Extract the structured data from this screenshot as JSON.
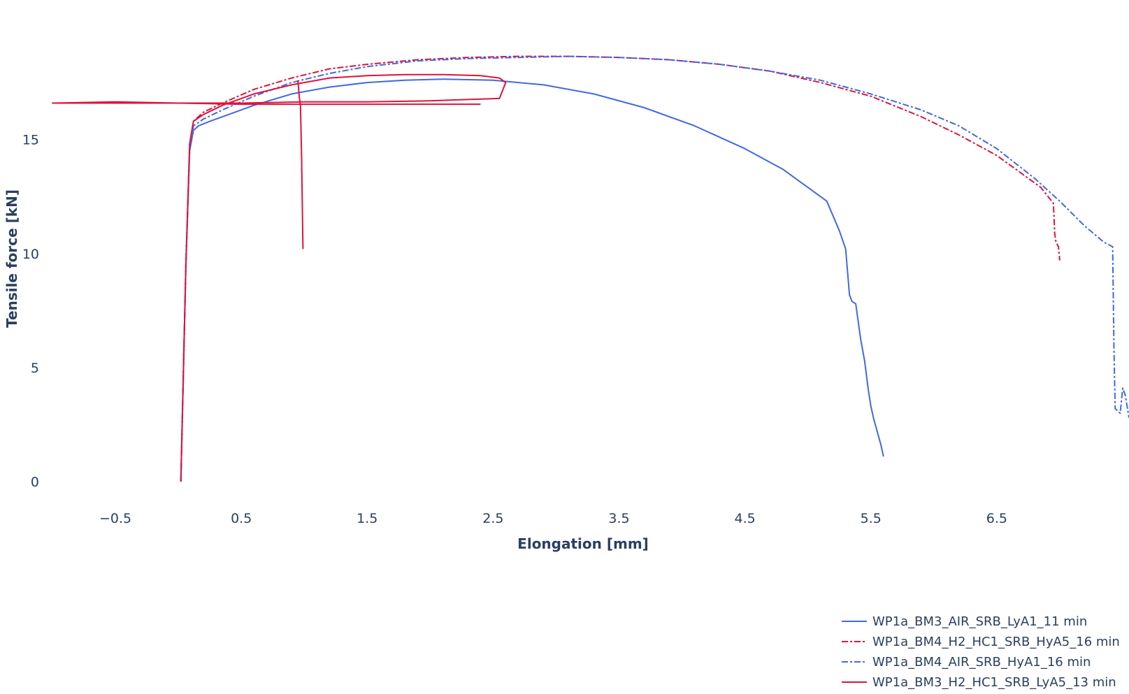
{
  "chart_data": {
    "type": "line",
    "xlabel": "Elongation [mm]",
    "ylabel": "Tensile force [kN]",
    "xlim": [
      -1.0,
      7.55
    ],
    "ylim": [
      -1.1,
      20.2
    ],
    "xticks": [
      -0.5,
      0.5,
      1.5,
      2.5,
      3.5,
      4.5,
      5.5,
      6.5
    ],
    "xtick_labels": [
      "−0.5",
      "0.5",
      "1.5",
      "2.5",
      "3.5",
      "4.5",
      "5.5",
      "6.5"
    ],
    "yticks": [
      0,
      5,
      10,
      15
    ],
    "ytick_labels": [
      "0",
      "5",
      "10",
      "15"
    ],
    "grid": false,
    "legend_position": "bottom-right",
    "series": [
      {
        "name": "WP1a_BM3_AIR_SRB_LyA1_11 min",
        "color": "#4169e1",
        "dash": "solid",
        "x": [
          0.02,
          0.06,
          0.09,
          0.12,
          0.16,
          0.25,
          0.4,
          0.6,
          0.9,
          1.2,
          1.5,
          1.8,
          2.1,
          2.5,
          2.9,
          3.3,
          3.7,
          4.1,
          4.5,
          4.8,
          5.0,
          5.15,
          5.25,
          5.3,
          5.33,
          5.35,
          5.38,
          5.42,
          5.45,
          5.48,
          5.5,
          5.52,
          5.55,
          5.58,
          5.6
        ],
        "y": [
          0.0,
          9.5,
          14.5,
          15.4,
          15.6,
          15.8,
          16.1,
          16.5,
          17.0,
          17.3,
          17.5,
          17.6,
          17.65,
          17.6,
          17.4,
          17.0,
          16.4,
          15.6,
          14.6,
          13.7,
          12.9,
          12.3,
          11.0,
          10.2,
          8.2,
          7.9,
          7.8,
          6.2,
          5.3,
          4.0,
          3.3,
          2.8,
          2.2,
          1.6,
          1.1
        ]
      },
      {
        "name": "WP1a_BM4_H2_HC1_SRB_HyA5_16 min",
        "color": "#dc143c",
        "dash": "dashdot",
        "x": [
          0.02,
          0.06,
          0.09,
          0.12,
          0.2,
          0.35,
          0.6,
          0.9,
          1.2,
          1.5,
          1.9,
          2.3,
          2.7,
          3.1,
          3.5,
          3.9,
          4.3,
          4.7,
          5.1,
          5.5,
          5.9,
          6.2,
          6.5,
          6.7,
          6.85,
          6.95,
          6.96,
          6.97,
          6.99,
          7.0
        ],
        "y": [
          0.0,
          9.5,
          14.8,
          15.8,
          16.2,
          16.6,
          17.2,
          17.7,
          18.1,
          18.3,
          18.5,
          18.6,
          18.65,
          18.65,
          18.6,
          18.5,
          18.3,
          18.0,
          17.5,
          16.9,
          16.0,
          15.2,
          14.3,
          13.5,
          12.9,
          12.2,
          10.9,
          10.5,
          10.3,
          9.7
        ]
      },
      {
        "name": "WP1a_BM4_AIR_SRB_HyA1_16 min",
        "color": "#4169e1",
        "dash": "dashdot",
        "x": [
          0.02,
          0.06,
          0.09,
          0.12,
          0.2,
          0.35,
          0.6,
          0.9,
          1.2,
          1.5,
          1.9,
          2.3,
          2.7,
          3.1,
          3.5,
          3.9,
          4.3,
          4.7,
          5.1,
          5.5,
          5.9,
          6.2,
          6.5,
          6.8,
          7.0,
          7.2,
          7.35,
          7.42,
          7.43,
          7.44,
          7.46,
          7.48,
          7.5,
          7.52,
          7.55
        ],
        "y": [
          0.0,
          9.5,
          14.6,
          15.6,
          15.9,
          16.3,
          16.9,
          17.5,
          17.9,
          18.2,
          18.45,
          18.55,
          18.6,
          18.65,
          18.6,
          18.5,
          18.3,
          18.0,
          17.6,
          17.0,
          16.3,
          15.6,
          14.6,
          13.3,
          12.3,
          11.2,
          10.5,
          10.3,
          6.0,
          3.2,
          3.1,
          3.0,
          4.1,
          3.8,
          2.8
        ]
      },
      {
        "name": "WP1a_BM3_H2_HC1_SRB_LyA5_13 min",
        "color": "#dc143c",
        "dash": "solid",
        "x": [
          0.02,
          0.06,
          0.09,
          0.12,
          0.2,
          0.35,
          0.6,
          0.9,
          1.2,
          1.5,
          1.8,
          2.1,
          2.4,
          2.55,
          2.6,
          2.55,
          2.0,
          1.5,
          1.0,
          0.5,
          0.0,
          -0.5,
          -1.0,
          -0.5,
          0.0,
          0.5,
          1.0,
          1.5,
          2.0,
          2.4
        ],
        "y": [
          0.0,
          9.5,
          14.8,
          15.8,
          16.1,
          16.5,
          17.0,
          17.4,
          17.7,
          17.8,
          17.85,
          17.85,
          17.8,
          17.7,
          17.5,
          16.8,
          16.7,
          16.65,
          16.65,
          16.6,
          16.6,
          16.65,
          16.6,
          16.6,
          16.6,
          16.55,
          16.55,
          16.55,
          16.55,
          16.55
        ]
      }
    ],
    "spurs": [
      {
        "color": "#dc143c",
        "x": [
          0.95,
          0.96,
          0.97,
          0.98,
          0.98,
          0.99
        ],
        "y": [
          17.6,
          16.9,
          16.5,
          14.0,
          13.8,
          10.2
        ]
      }
    ]
  }
}
